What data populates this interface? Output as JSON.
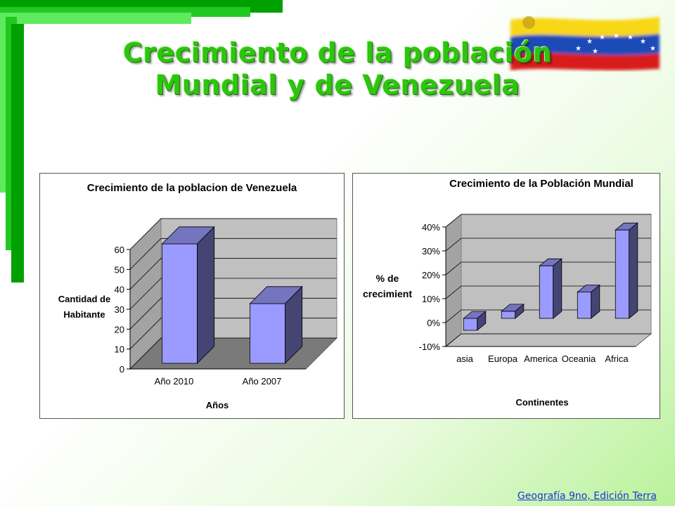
{
  "slide": {
    "title_line1": "Crecimiento de la población",
    "title_line2": "Mundial y de Venezuela",
    "footer_link": "Geografía 9no, Edición Terra",
    "accent_color": "#2ec40f",
    "deco_color": "#00a000",
    "flag_colors": [
      "#f7d718",
      "#1e4bb8",
      "#d81e1e"
    ]
  },
  "chart_data": [
    {
      "type": "bar",
      "title": "Crecimiento de la poblacion de Venezuela",
      "categories": [
        "Año 2010",
        "Año 2007"
      ],
      "values": [
        60,
        30
      ],
      "xlabel": "Años",
      "ylabel_lines": [
        "Cantidad de",
        "Habitante"
      ],
      "ylim": [
        0,
        60
      ],
      "yticks": [
        "0",
        "10",
        "20",
        "30",
        "40",
        "50",
        "60"
      ],
      "bar_color": "#9a9aff",
      "wall_color": "#c0c0c0",
      "floor_color": "#7a7a7a"
    },
    {
      "type": "bar",
      "title": "Crecimiento de la Población Mundial",
      "categories": [
        "asia",
        "Europa",
        "America",
        "Oceania",
        "Africa"
      ],
      "values": [
        -5,
        3,
        22,
        11,
        37
      ],
      "xlabel": "Continentes",
      "ylabel_lines": [
        "% de",
        "crecimient"
      ],
      "ylim": [
        -10,
        40
      ],
      "yticks": [
        "-10%",
        "0%",
        "10%",
        "20%",
        "30%",
        "40%"
      ],
      "bar_color": "#9a9aff",
      "wall_color": "#c0c0c0",
      "floor_color": "#c0c0c0"
    }
  ]
}
